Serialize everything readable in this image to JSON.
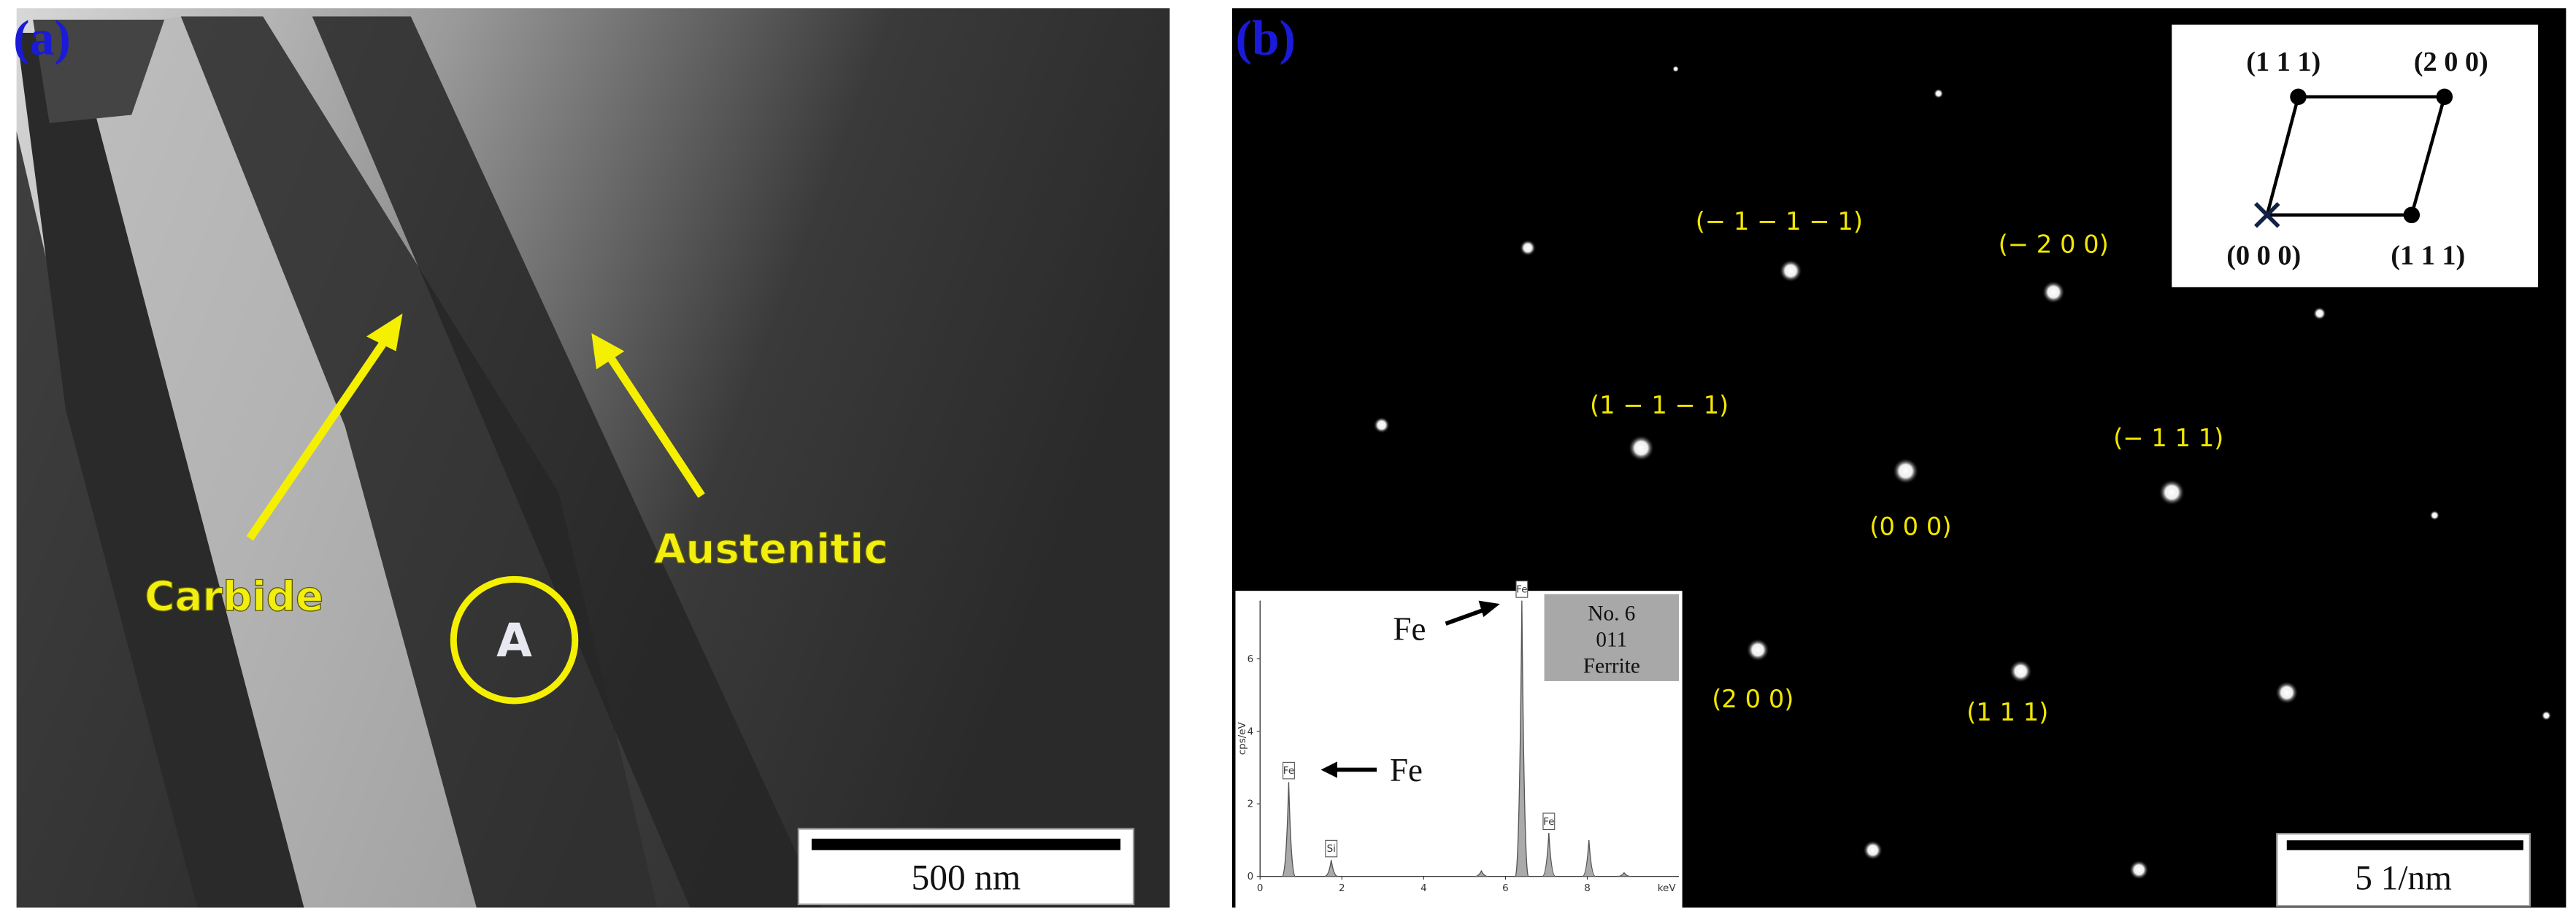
{
  "panel_a": {
    "label": "(a)",
    "annotations": [
      "Carbide",
      "Austenitic"
    ],
    "region": "A",
    "scale_bar": "500  nm"
  },
  "panel_b": {
    "label": "(b)",
    "spot_labels": [
      "(− 1 − 1 − 1)",
      "(− 2 0 0)",
      "(1 − 1 − 1)",
      "(− 1 1 1)",
      "(0 0 0)",
      "(2 0 0)",
      "(1 1 1)"
    ],
    "key": {
      "top_left": "(1 1 1)",
      "top_right": "(2 0 0)",
      "bottom_left": "(0 0 0)",
      "bottom_right": "(1 1 1)"
    },
    "scale_bar": "5  1/nm",
    "eds": {
      "box": [
        "No. 6",
        "011",
        "Ferrite"
      ],
      "arrow_labels": [
        "Fe",
        "Fe"
      ],
      "y_label": "cps/eV",
      "x_unit": "keV",
      "xlim": [
        0,
        10
      ],
      "ylim": [
        0,
        7.6
      ],
      "xticks": [
        0,
        2,
        4,
        6,
        8
      ],
      "yticks": [
        0,
        2,
        4,
        6
      ],
      "peaks": [
        {
          "label": "Fe",
          "energy": 0.7,
          "height": 2.6
        },
        {
          "label": "Si",
          "energy": 1.74,
          "height": 0.45
        },
        {
          "energy": 5.41,
          "height": 0.15
        },
        {
          "label": "Fe",
          "energy": 6.4,
          "height": 7.6
        },
        {
          "label": "Fe",
          "energy": 7.06,
          "height": 1.2
        },
        {
          "energy": 8.04,
          "height": 1.0
        },
        {
          "energy": 8.9,
          "height": 0.1
        }
      ]
    }
  }
}
